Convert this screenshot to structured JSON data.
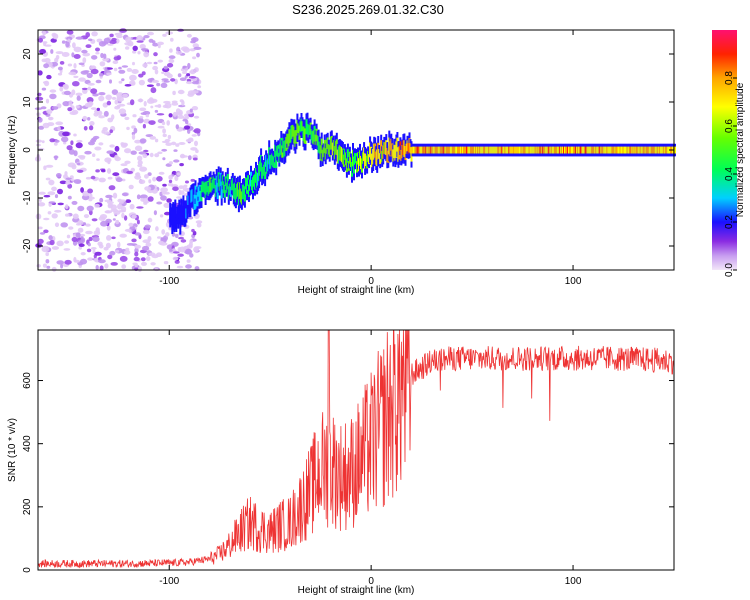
{
  "title": "S236.2025.269.01.32.C30",
  "chart_data": [
    {
      "type": "heatmap",
      "name": "spectrogram",
      "xlabel": "Height of straight line (km)",
      "ylabel": "Frequency (Hz)",
      "xlim": [
        -165,
        150
      ],
      "ylim": [
        -25,
        25
      ],
      "xticks": [
        -100,
        0,
        100
      ],
      "yticks": [
        -20,
        -10,
        0,
        10,
        20
      ],
      "colorbar": {
        "label": "Normalized spectral amplitude",
        "range": [
          0,
          1
        ],
        "ticks": [
          0.0,
          0.2,
          0.4,
          0.6,
          0.8
        ]
      },
      "ridge": {
        "x": [
          -95,
          -90,
          -85,
          -80,
          -75,
          -70,
          -65,
          -60,
          -55,
          -50,
          -45,
          -40,
          -35,
          -30,
          -25,
          -20,
          -15,
          -10,
          -5,
          0,
          10,
          20,
          40,
          60,
          80,
          100,
          120,
          150
        ],
        "y": [
          -14,
          -11,
          -9,
          -8,
          -7,
          -8,
          -9,
          -7,
          -4,
          -2,
          0,
          3,
          4,
          4,
          0,
          1,
          -1,
          -3,
          -2,
          -1,
          0,
          0,
          0,
          0,
          0,
          0,
          0,
          0
        ],
        "amplitude": [
          0.15,
          0.2,
          0.3,
          0.4,
          0.3,
          0.35,
          0.4,
          0.35,
          0.35,
          0.35,
          0.4,
          0.45,
          0.45,
          0.4,
          0.45,
          0.5,
          0.5,
          0.45,
          0.55,
          0.65,
          0.7,
          0.75,
          0.7,
          0.7,
          0.7,
          0.72,
          0.7,
          0.7
        ]
      },
      "noise_region_x": [
        -165,
        -85
      ]
    },
    {
      "type": "line",
      "name": "snr",
      "xlabel": "Height of straight line (km)",
      "ylabel": "SNR (10 * v/v)",
      "xlim": [
        -165,
        150
      ],
      "ylim": [
        0,
        760
      ],
      "xticks": [
        -100,
        0,
        100
      ],
      "yticks": [
        0,
        200,
        400,
        600
      ],
      "color": "#ee3333",
      "series": [
        {
          "name": "SNR",
          "x": [
            -165,
            -140,
            -120,
            -100,
            -90,
            -80,
            -75,
            -70,
            -65,
            -60,
            -55,
            -50,
            -45,
            -40,
            -35,
            -30,
            -25,
            -20,
            -15,
            -10,
            -5,
            0,
            5,
            10,
            15,
            20,
            25,
            30,
            40,
            50,
            60,
            80,
            100,
            120,
            140,
            150
          ],
          "y": [
            20,
            20,
            20,
            22,
            25,
            35,
            50,
            80,
            120,
            150,
            130,
            120,
            140,
            150,
            200,
            250,
            320,
            330,
            300,
            310,
            350,
            400,
            450,
            520,
            580,
            620,
            640,
            660,
            670,
            670,
            670,
            670,
            670,
            670,
            665,
            660
          ]
        }
      ]
    }
  ]
}
